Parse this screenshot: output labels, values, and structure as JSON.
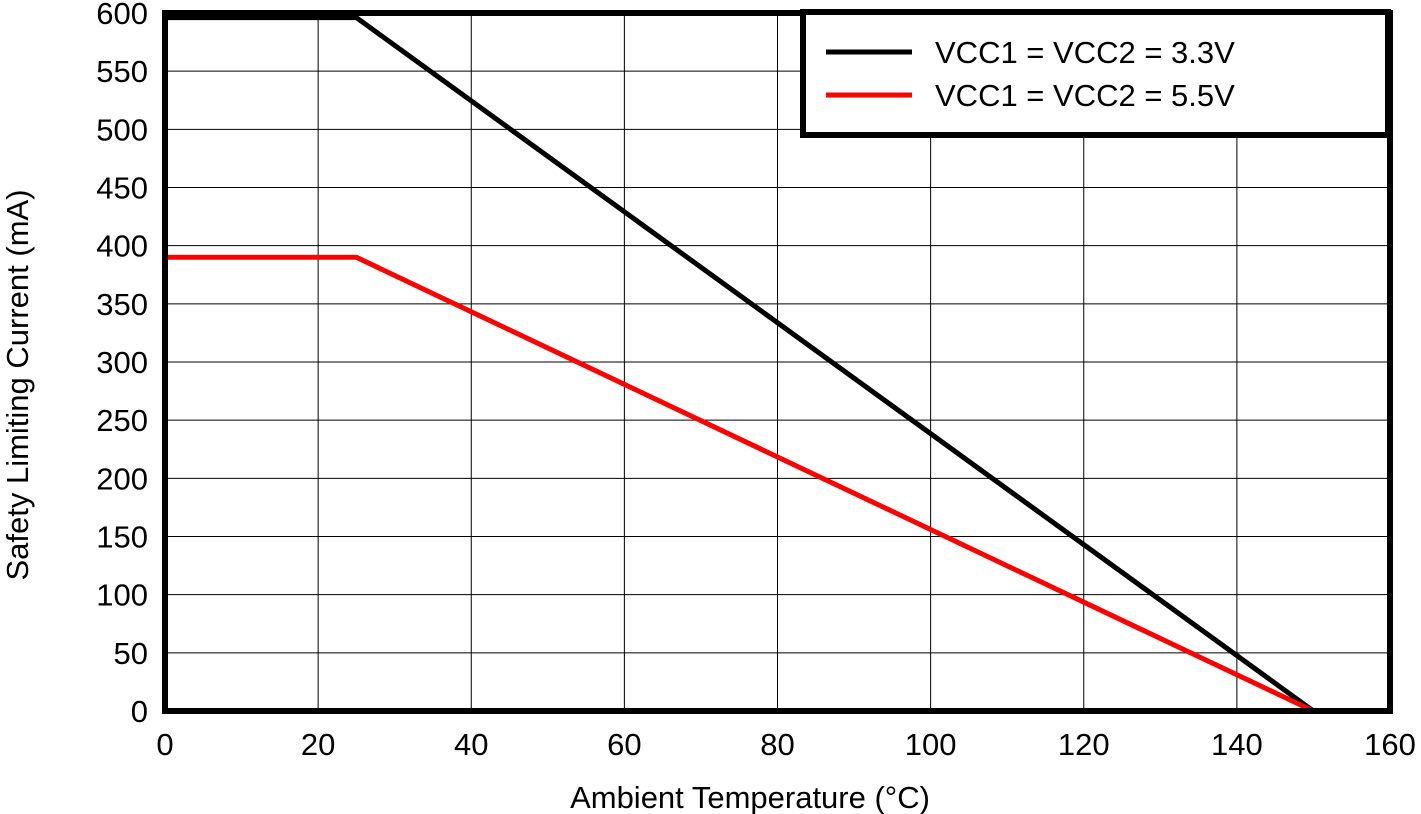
{
  "chart_data": {
    "type": "line",
    "title": "",
    "xlabel": "Ambient Temperature (°C)",
    "ylabel": "Safety Limiting Current (mA)",
    "xlim": [
      0,
      160
    ],
    "ylim": [
      0,
      600
    ],
    "xticks": [
      0,
      20,
      40,
      60,
      80,
      100,
      120,
      140,
      160
    ],
    "yticks": [
      0,
      50,
      100,
      150,
      200,
      250,
      300,
      350,
      400,
      450,
      500,
      550,
      600
    ],
    "grid": true,
    "legend_position": "top-right",
    "series": [
      {
        "name": "VCC1 = VCC2 = 3.3V",
        "color": "#000000",
        "x": [
          0,
          25,
          150
        ],
        "y": [
          596,
          596,
          0
        ]
      },
      {
        "name": "VCC1 = VCC2 = 5.5V",
        "color": "#ff0000",
        "x": [
          0,
          25,
          150
        ],
        "y": [
          390,
          390,
          0
        ]
      }
    ]
  }
}
